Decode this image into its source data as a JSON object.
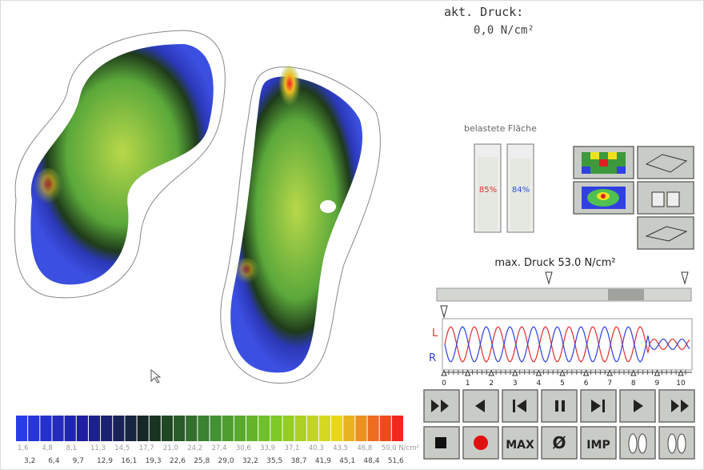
{
  "header": {
    "label": "akt. Druck:",
    "value": "0,0 N/cm²"
  },
  "area": {
    "label": "belastete Fläche",
    "left": "85%",
    "right": "84%"
  },
  "max_pressure": "max. Druck 53.0 N/cm²",
  "graph": {
    "left_label": "L",
    "right_label": "R",
    "ticks": [
      "0",
      "1",
      "2",
      "3",
      "4",
      "5",
      "6",
      "7",
      "8",
      "9",
      "10"
    ]
  },
  "buttons": {
    "max": "MAX",
    "zero": "Ø",
    "imp": "IMP"
  },
  "scale": {
    "top": [
      "1,6",
      "4,8",
      "8,1",
      "11,3",
      "14,5",
      "17,7",
      "21,0",
      "24,2",
      "27,4",
      "30,6",
      "33,9",
      "37,1",
      "40,3",
      "43,5",
      "46,8",
      "50,0 N/cm²"
    ],
    "bottom": [
      "3,2",
      "6,4",
      "9,7",
      "12,9",
      "16,1",
      "19,3",
      "22,6",
      "25,8",
      "29,0",
      "32,2",
      "35,5",
      "38,7",
      "41,9",
      "45,1",
      "48,4",
      "51,6"
    ]
  }
}
